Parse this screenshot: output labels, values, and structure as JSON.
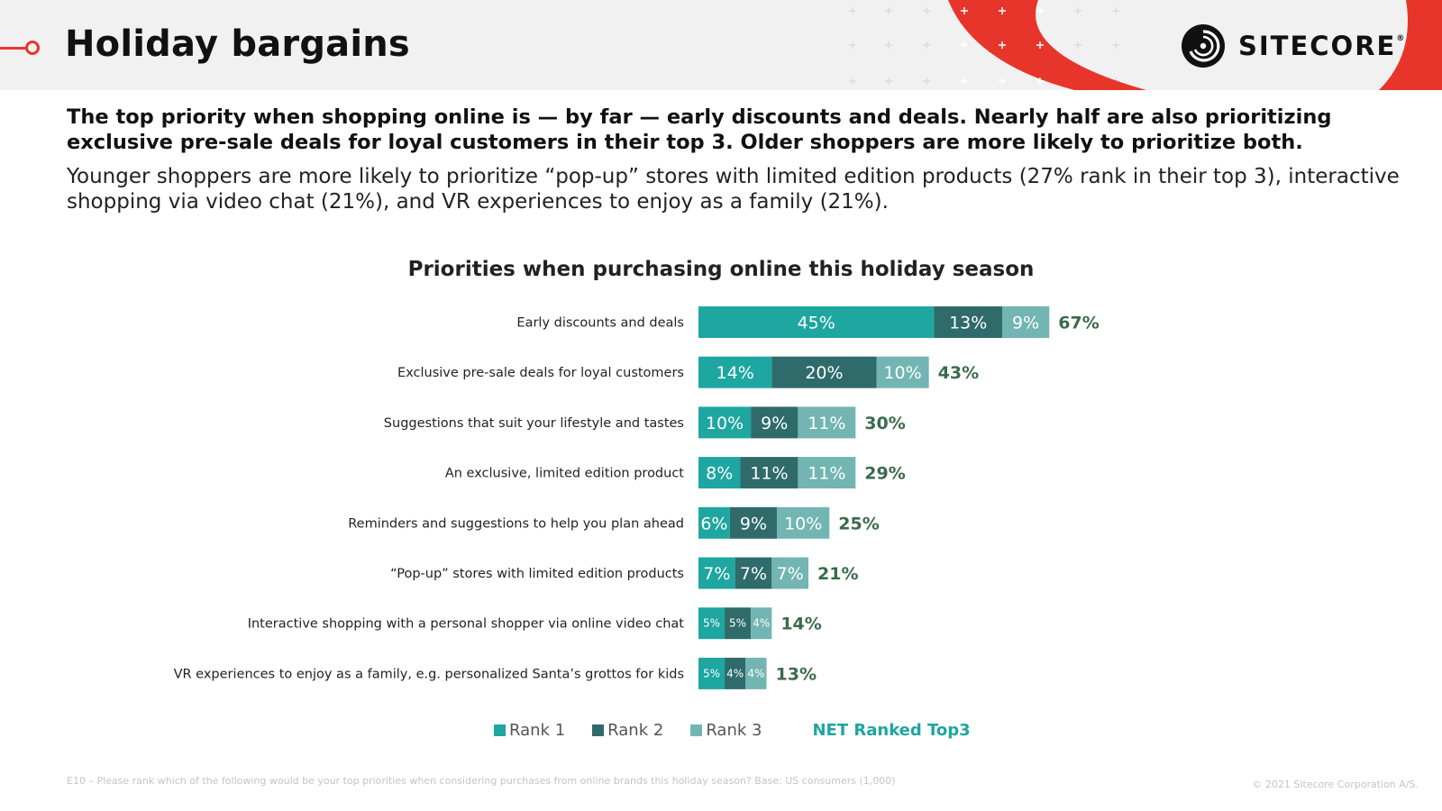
{
  "header": {
    "title": "Holiday bargains",
    "logo_text": "SITECORE",
    "logo_reg": "®"
  },
  "intro": {
    "bold": "The top priority when shopping online is — by far — early discounts and deals. Nearly half are also prioritizing exclusive pre-sale deals for loyal customers in their top 3. Older shoppers are more likely to prioritize both.",
    "regular": "Younger shoppers are more likely to prioritize “pop-up” stores with limited edition products (27% rank in their top 3), interactive shopping via video chat (21%), and VR experiences to enjoy as a family (21%)."
  },
  "colors": {
    "accent_red": "#e8352b",
    "rank1": "#1ea6a0",
    "rank2": "#2f6b6b",
    "rank3": "#72b5b2",
    "net": "#3a6b4a",
    "net_legend": "#1ea6a0"
  },
  "chart_data": {
    "type": "bar",
    "orientation": "horizontal",
    "stacked": true,
    "title": "Priorities when purchasing online this holiday season",
    "categories": [
      "Early discounts and deals",
      "Exclusive pre-sale deals for loyal customers",
      "Suggestions that suit your lifestyle and tastes",
      "An exclusive, limited edition product",
      "Reminders and suggestions to help you plan ahead",
      "“Pop-up” stores with limited edition products",
      "Interactive shopping with a personal shopper via online video chat",
      "VR experiences to enjoy as a family, e.g. personalized Santa’s grottos for kids"
    ],
    "series": [
      {
        "name": "Rank 1",
        "values": [
          45,
          14,
          10,
          8,
          6,
          7,
          5,
          5
        ]
      },
      {
        "name": "Rank 2",
        "values": [
          13,
          20,
          9,
          11,
          9,
          7,
          5,
          4
        ]
      },
      {
        "name": "Rank 3",
        "values": [
          9,
          10,
          11,
          11,
          10,
          7,
          4,
          4
        ]
      }
    ],
    "net": {
      "name": "NET Ranked Top3",
      "values": [
        67,
        43,
        30,
        29,
        25,
        21,
        14,
        13
      ]
    },
    "value_suffix": "%",
    "legend_position": "bottom",
    "grid": false
  },
  "footnote": "E10 – Please rank which of the following would be your top priorities when considering purchases from online brands this holiday season? Base: US consumers (1,000)",
  "copyright": "© 2021 Sitecore Corporation A/S."
}
